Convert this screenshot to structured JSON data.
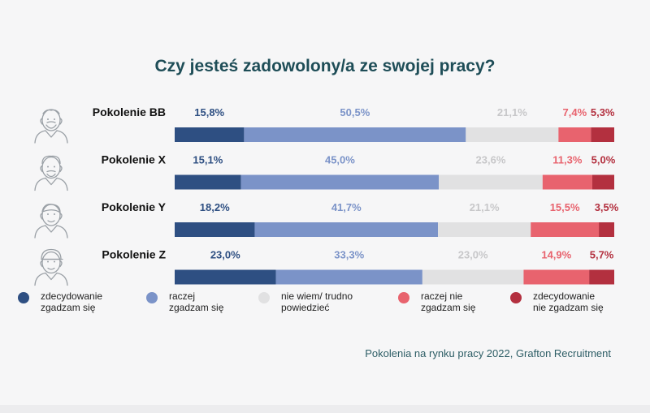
{
  "title": "Czy jesteś zadowolony/a ze swojej pracy?",
  "source": "Pokolenia na rynku pracy 2022, Grafton Recruitment",
  "chart_data": {
    "type": "bar",
    "stacked": true,
    "orientation": "horizontal",
    "categories": [
      "Pokolenie BB",
      "Pokolenie X",
      "Pokolenie Y",
      "Pokolenie Z"
    ],
    "category_icons": [
      "elderly-person-icon",
      "middle-aged-person-icon",
      "young-adult-icon",
      "young-person-with-cap-icon"
    ],
    "series": [
      {
        "name": "zdecydowanie zgadzam się",
        "color": "#2e4f82",
        "label_color": "#2e4f82",
        "values": [
          15.8,
          15.1,
          18.2,
          23.0
        ],
        "labels": [
          "15,8%",
          "15,1%",
          "18,2%",
          "23,0%"
        ]
      },
      {
        "name": "raczej zgadzam się",
        "color": "#7b93c8",
        "label_color": "#7b93c8",
        "values": [
          50.5,
          45.0,
          41.7,
          33.3
        ],
        "labels": [
          "50,5%",
          "45,0%",
          "41,7%",
          "33,3%"
        ]
      },
      {
        "name": "nie wiem/ trudno powiedzieć",
        "color": "#e1e1e2",
        "label_color": "#c7c7c9",
        "values": [
          21.1,
          23.6,
          21.1,
          23.0
        ],
        "labels": [
          "21,1%",
          "23,6%",
          "21,1%",
          "23,0%"
        ]
      },
      {
        "name": "raczej nie zgadzam się",
        "color": "#e8636e",
        "label_color": "#e8636e",
        "values": [
          7.4,
          11.3,
          15.5,
          14.9
        ],
        "labels": [
          "7,4%",
          "11,3%",
          "15,5%",
          "14,9%"
        ]
      },
      {
        "name": "zdecydowanie nie zgadzam się",
        "color": "#b3303f",
        "label_color": "#b3303f",
        "values": [
          5.3,
          5.0,
          3.5,
          5.7
        ],
        "labels": [
          "5,3%",
          "5,0%",
          "3,5%",
          "5,7%"
        ]
      }
    ],
    "legend": [
      {
        "line1": "zdecydowanie",
        "line2": "zgadzam się"
      },
      {
        "line1": "raczej",
        "line2": "zgadzam się"
      },
      {
        "line1": "nie wiem/ trudno",
        "line2": "powiedzieć"
      },
      {
        "line1": "raczej nie",
        "line2": "zgadzam się"
      },
      {
        "line1": "zdecydowanie",
        "line2": "nie zgadzam się"
      }
    ],
    "xlim": [
      0,
      100
    ],
    "grid": false,
    "legend_position": "bottom"
  }
}
